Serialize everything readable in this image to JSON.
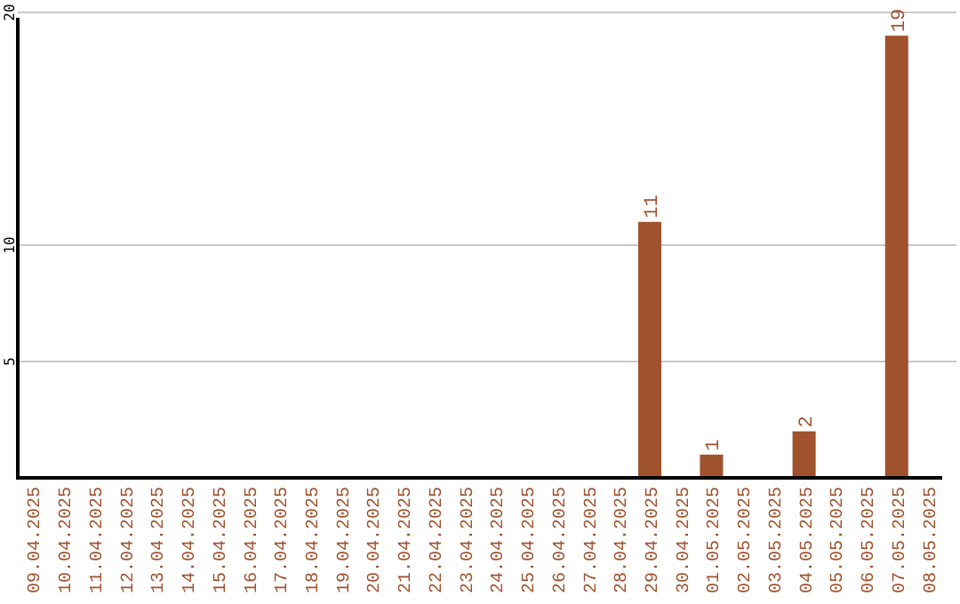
{
  "chart_data": {
    "type": "bar",
    "categories": [
      "09.04.2025",
      "10.04.2025",
      "11.04.2025",
      "12.04.2025",
      "13.04.2025",
      "14.04.2025",
      "15.04.2025",
      "16.04.2025",
      "17.04.2025",
      "18.04.2025",
      "19.04.2025",
      "20.04.2025",
      "21.04.2025",
      "22.04.2025",
      "23.04.2025",
      "24.04.2025",
      "25.04.2025",
      "26.04.2025",
      "27.04.2025",
      "28.04.2025",
      "29.04.2025",
      "30.04.2025",
      "01.05.2025",
      "02.05.2025",
      "03.05.2025",
      "04.05.2025",
      "05.05.2025",
      "06.05.2025",
      "07.05.2025",
      "08.05.2025"
    ],
    "values": [
      0,
      0,
      0,
      0,
      0,
      0,
      0,
      0,
      0,
      0,
      0,
      0,
      0,
      0,
      0,
      0,
      0,
      0,
      0,
      0,
      11,
      0,
      1,
      0,
      0,
      2,
      0,
      0,
      19,
      0
    ],
    "value_labels": [
      null,
      null,
      null,
      null,
      null,
      null,
      null,
      null,
      null,
      null,
      null,
      null,
      null,
      null,
      null,
      null,
      null,
      null,
      null,
      null,
      "11",
      null,
      "1",
      null,
      null,
      "2",
      null,
      null,
      "19",
      null
    ],
    "color": "#a0522d",
    "ylim": [
      0,
      20
    ],
    "yticks": [
      5,
      10,
      20
    ],
    "grid": "y"
  }
}
